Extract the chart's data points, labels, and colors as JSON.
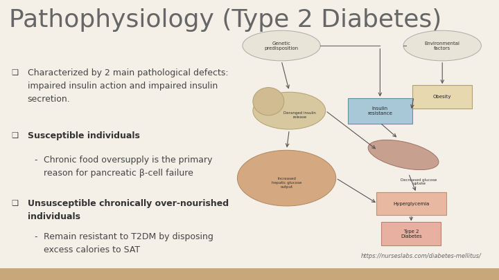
{
  "title": "Pathophysiology (Type 2 Diabetes)",
  "title_fontsize": 26,
  "title_color": "#666666",
  "bg_color": "#f4f0e8",
  "bottom_bar_color": "#c8a87a",
  "text_color": "#444444",
  "bold_color": "#333333",
  "bullet": "❑",
  "bullet_size": 8,
  "url_text": "https://nurseslabs.com/diabetes-mellitus/",
  "url_fontsize": 6,
  "fontsize_main": 9,
  "fontsize_sub": 9,
  "bullets": [
    {
      "text": "Characterized by 2 main pathological defects:\nimpaired insulin action and impaired insulin\nsecretion.",
      "bold": false,
      "subbullets": []
    },
    {
      "text": "Susceptible individuals",
      "bold": true,
      "subbullets": [
        "Chronic food oversupply is the primary\nreason for pancreatic β-cell failure"
      ]
    },
    {
      "text": "Unsusceptible chronically over-nourished\nindividuals",
      "bold": true,
      "subbullets": [
        "Remain resistant to T2DM by disposing\nexcess calories to SAT"
      ]
    }
  ]
}
